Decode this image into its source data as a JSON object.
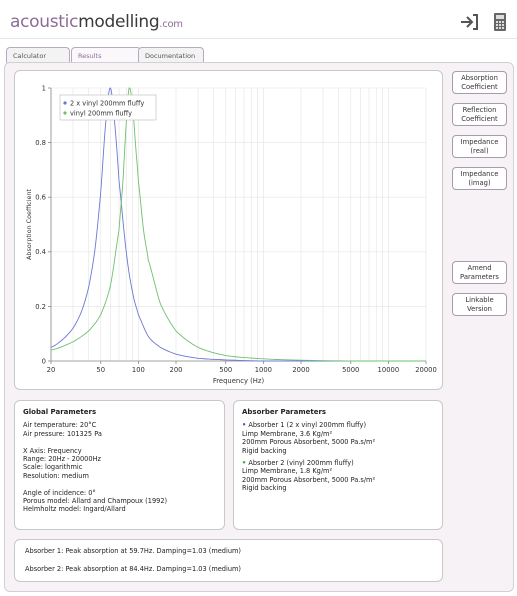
{
  "header": {
    "logo_part1": "acoustic",
    "logo_part2": "modelling",
    "logo_part3": ".com",
    "icons": [
      "logout-icon",
      "calculator-icon"
    ]
  },
  "tabs": [
    {
      "label": "Calculator",
      "active": false
    },
    {
      "label": "Results",
      "active": true
    },
    {
      "label": "Documentation",
      "active": false
    }
  ],
  "side_buttons": {
    "absorption": [
      "Absorption",
      "Coefficient"
    ],
    "reflection": [
      "Reflection",
      "Coefficient"
    ],
    "imp_real": [
      "Impedance",
      "(real)"
    ],
    "imp_imag": [
      "Impedance",
      "(imag)"
    ],
    "amend": [
      "Amend",
      "Parameters"
    ],
    "linkable": [
      "Linkable",
      "Version"
    ]
  },
  "chart_data": {
    "type": "line",
    "xlabel": "Frequency (Hz)",
    "ylabel": "Absorption Coefficient",
    "x_scale": "log",
    "xlim": [
      20,
      20000
    ],
    "ylim": [
      0,
      1
    ],
    "x_ticks": [
      "20",
      "50",
      "100",
      "200",
      "500",
      "1000",
      "2000",
      "5000",
      "10000",
      "20000"
    ],
    "x_tick_values": [
      20,
      50,
      100,
      200,
      500,
      1000,
      2000,
      5000,
      10000,
      20000
    ],
    "y_ticks": [
      "0",
      "0.2",
      "0.4",
      "0.6",
      "0.8",
      "1"
    ],
    "y_tick_values": [
      0,
      0.2,
      0.4,
      0.6,
      0.8,
      1
    ],
    "grid": true,
    "legend_position": "top-left",
    "series": [
      {
        "name": "2 x vinyl 200mm fluffy",
        "color": "#6b77d6",
        "x": [
          20,
          25,
          30,
          35,
          40,
          45,
          50,
          55,
          59.7,
          65,
          70,
          80,
          90,
          100,
          120,
          150,
          200,
          300,
          500,
          1000,
          2000,
          5000,
          10000,
          20000
        ],
        "y": [
          0.05,
          0.08,
          0.12,
          0.18,
          0.27,
          0.41,
          0.62,
          0.88,
          1.0,
          0.86,
          0.66,
          0.4,
          0.25,
          0.17,
          0.09,
          0.05,
          0.025,
          0.01,
          0.004,
          0.0,
          0.0,
          0.0,
          0.0,
          0.0
        ]
      },
      {
        "name": "vinyl 200mm fluffy",
        "color": "#6ec06e",
        "x": [
          20,
          30,
          40,
          50,
          60,
          70,
          75,
          80,
          84.4,
          90,
          95,
          100,
          110,
          120,
          150,
          200,
          300,
          500,
          1000,
          2000,
          5000,
          10000,
          20000
        ],
        "y": [
          0.04,
          0.07,
          0.11,
          0.17,
          0.28,
          0.48,
          0.65,
          0.87,
          1.0,
          0.93,
          0.79,
          0.66,
          0.48,
          0.37,
          0.21,
          0.11,
          0.05,
          0.02,
          0.008,
          0.003,
          0.0,
          0.0,
          0.0
        ]
      }
    ]
  },
  "global_params": {
    "title": "Global Parameters",
    "air_temp": "Air temperature: 20°C",
    "air_pressure": "Air pressure: 101325 Pa",
    "x_axis": "X Axis: Frequency",
    "range": "Range: 20Hz - 20000Hz",
    "scale": "Scale: logarithmic",
    "resolution": "Resolution: medium",
    "angle": "Angle of incidence: 0°",
    "porous_model": "Porous model: Allard and Champoux (1992)",
    "helmholtz_model": "Helmholtz model: Ingard/Allard"
  },
  "absorber_params": {
    "title": "Absorber Parameters",
    "a1_title": "Absorber 1 (2 x vinyl 200mm fluffy)",
    "a1_line1": "Limp Membrane, 3.6 Kg/m²",
    "a1_line2": "200mm Porous Absorbent, 5000 Pa.s/m²",
    "a1_line3": "Rigid backing",
    "a2_title": "Absorber 2 (vinyl 200mm fluffy)",
    "a2_line1": "Limp Membrane, 1.8 Kg/m²",
    "a2_line2": "200mm Porous Absorbent, 5000 Pa.s/m²",
    "a2_line3": "Rigid backing"
  },
  "results": {
    "line1": "Absorber 1: Peak absorption at 59.7Hz. Damping=1.03 (medium)",
    "line2": "Absorber 2: Peak absorption at 84.4Hz. Damping=1.03 (medium)"
  }
}
